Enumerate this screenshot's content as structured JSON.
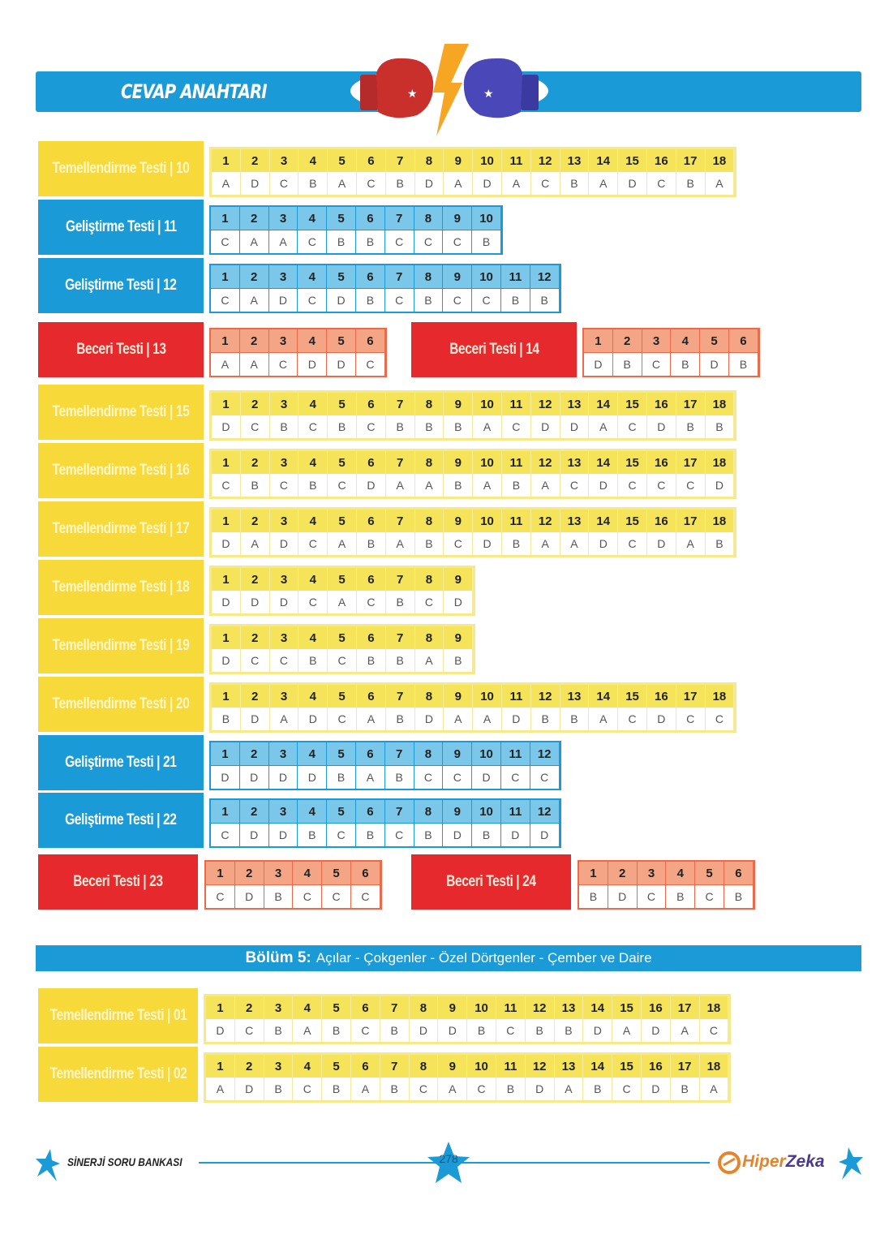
{
  "header": {
    "title": "CEVAP ANAHTARI"
  },
  "tests": [
    {
      "label": "Temellendirme Testi | 10",
      "color": "yellow",
      "answers": [
        "A",
        "D",
        "C",
        "B",
        "A",
        "C",
        "B",
        "D",
        "A",
        "D",
        "A",
        "C",
        "B",
        "A",
        "D",
        "C",
        "B",
        "A"
      ]
    },
    {
      "label": "Geliştirme Testi | 11",
      "color": "blue",
      "answers": [
        "C",
        "A",
        "A",
        "C",
        "B",
        "B",
        "C",
        "C",
        "C",
        "B"
      ]
    },
    {
      "label": "Geliştirme Testi | 12",
      "color": "blue",
      "answers": [
        "C",
        "A",
        "D",
        "C",
        "D",
        "B",
        "C",
        "B",
        "C",
        "C",
        "B",
        "B"
      ]
    },
    {
      "label": "Beceri Testi | 13",
      "color": "red",
      "answers": [
        "A",
        "A",
        "C",
        "D",
        "D",
        "C"
      ]
    },
    {
      "label": "Beceri Testi | 14",
      "color": "red",
      "answers": [
        "D",
        "B",
        "C",
        "B",
        "D",
        "B"
      ]
    },
    {
      "label": "Temellendirme Testi | 15",
      "color": "yellow",
      "answers": [
        "D",
        "C",
        "B",
        "C",
        "B",
        "C",
        "B",
        "B",
        "B",
        "A",
        "C",
        "D",
        "D",
        "A",
        "C",
        "D",
        "B",
        "B"
      ]
    },
    {
      "label": "Temellendirme Testi | 16",
      "color": "yellow",
      "answers": [
        "C",
        "B",
        "C",
        "B",
        "C",
        "D",
        "A",
        "A",
        "B",
        "A",
        "B",
        "A",
        "C",
        "D",
        "C",
        "C",
        "C",
        "D"
      ]
    },
    {
      "label": "Temellendirme Testi | 17",
      "color": "yellow",
      "answers": [
        "D",
        "A",
        "D",
        "C",
        "A",
        "B",
        "A",
        "B",
        "C",
        "D",
        "B",
        "A",
        "A",
        "D",
        "C",
        "D",
        "A",
        "B"
      ]
    },
    {
      "label": "Temellendirme Testi | 18",
      "color": "yellow",
      "answers": [
        "D",
        "D",
        "D",
        "C",
        "A",
        "C",
        "B",
        "C",
        "D"
      ]
    },
    {
      "label": "Temellendirme Testi | 19",
      "color": "yellow",
      "answers": [
        "D",
        "C",
        "C",
        "B",
        "C",
        "B",
        "B",
        "A",
        "B"
      ]
    },
    {
      "label": "Temellendirme Testi | 20",
      "color": "yellow",
      "answers": [
        "B",
        "D",
        "A",
        "D",
        "C",
        "A",
        "B",
        "D",
        "A",
        "A",
        "D",
        "B",
        "B",
        "A",
        "C",
        "D",
        "C",
        "C"
      ]
    },
    {
      "label": "Geliştirme Testi | 21",
      "color": "blue",
      "answers": [
        "D",
        "D",
        "D",
        "D",
        "B",
        "A",
        "B",
        "C",
        "C",
        "D",
        "C",
        "C"
      ]
    },
    {
      "label": "Geliştirme Testi | 22",
      "color": "blue",
      "answers": [
        "C",
        "D",
        "D",
        "B",
        "C",
        "B",
        "C",
        "B",
        "D",
        "B",
        "D",
        "D"
      ]
    },
    {
      "label": "Beceri Testi | 23",
      "color": "red",
      "answers": [
        "C",
        "D",
        "B",
        "C",
        "C",
        "C"
      ]
    },
    {
      "label": "Beceri Testi | 24",
      "color": "red",
      "answers": [
        "B",
        "D",
        "C",
        "B",
        "C",
        "B"
      ]
    }
  ],
  "section5": {
    "title_bold": "Bölüm 5:",
    "title_rest": "Açılar - Çokgenler - Özel Dörtgenler - Çember ve Daire",
    "tests": [
      {
        "label": "Temellendirme Testi | 01",
        "color": "yellow",
        "answers": [
          "D",
          "C",
          "B",
          "A",
          "B",
          "C",
          "B",
          "D",
          "D",
          "B",
          "C",
          "B",
          "B",
          "D",
          "A",
          "D",
          "A",
          "C"
        ]
      },
      {
        "label": "Temellendirme Testi | 02",
        "color": "yellow",
        "answers": [
          "A",
          "D",
          "B",
          "C",
          "B",
          "A",
          "B",
          "C",
          "A",
          "C",
          "B",
          "D",
          "A",
          "B",
          "C",
          "D",
          "B",
          "A"
        ]
      }
    ]
  },
  "footer": {
    "brand_left": "SİNERJİ SORU BANKASI",
    "page_number": "278",
    "brand_right_a": "Hiper",
    "brand_right_b": "Zeka"
  },
  "colors": {
    "blue": "#1a9ad6",
    "yellow": "#f7d93a",
    "red": "#e5292c"
  }
}
